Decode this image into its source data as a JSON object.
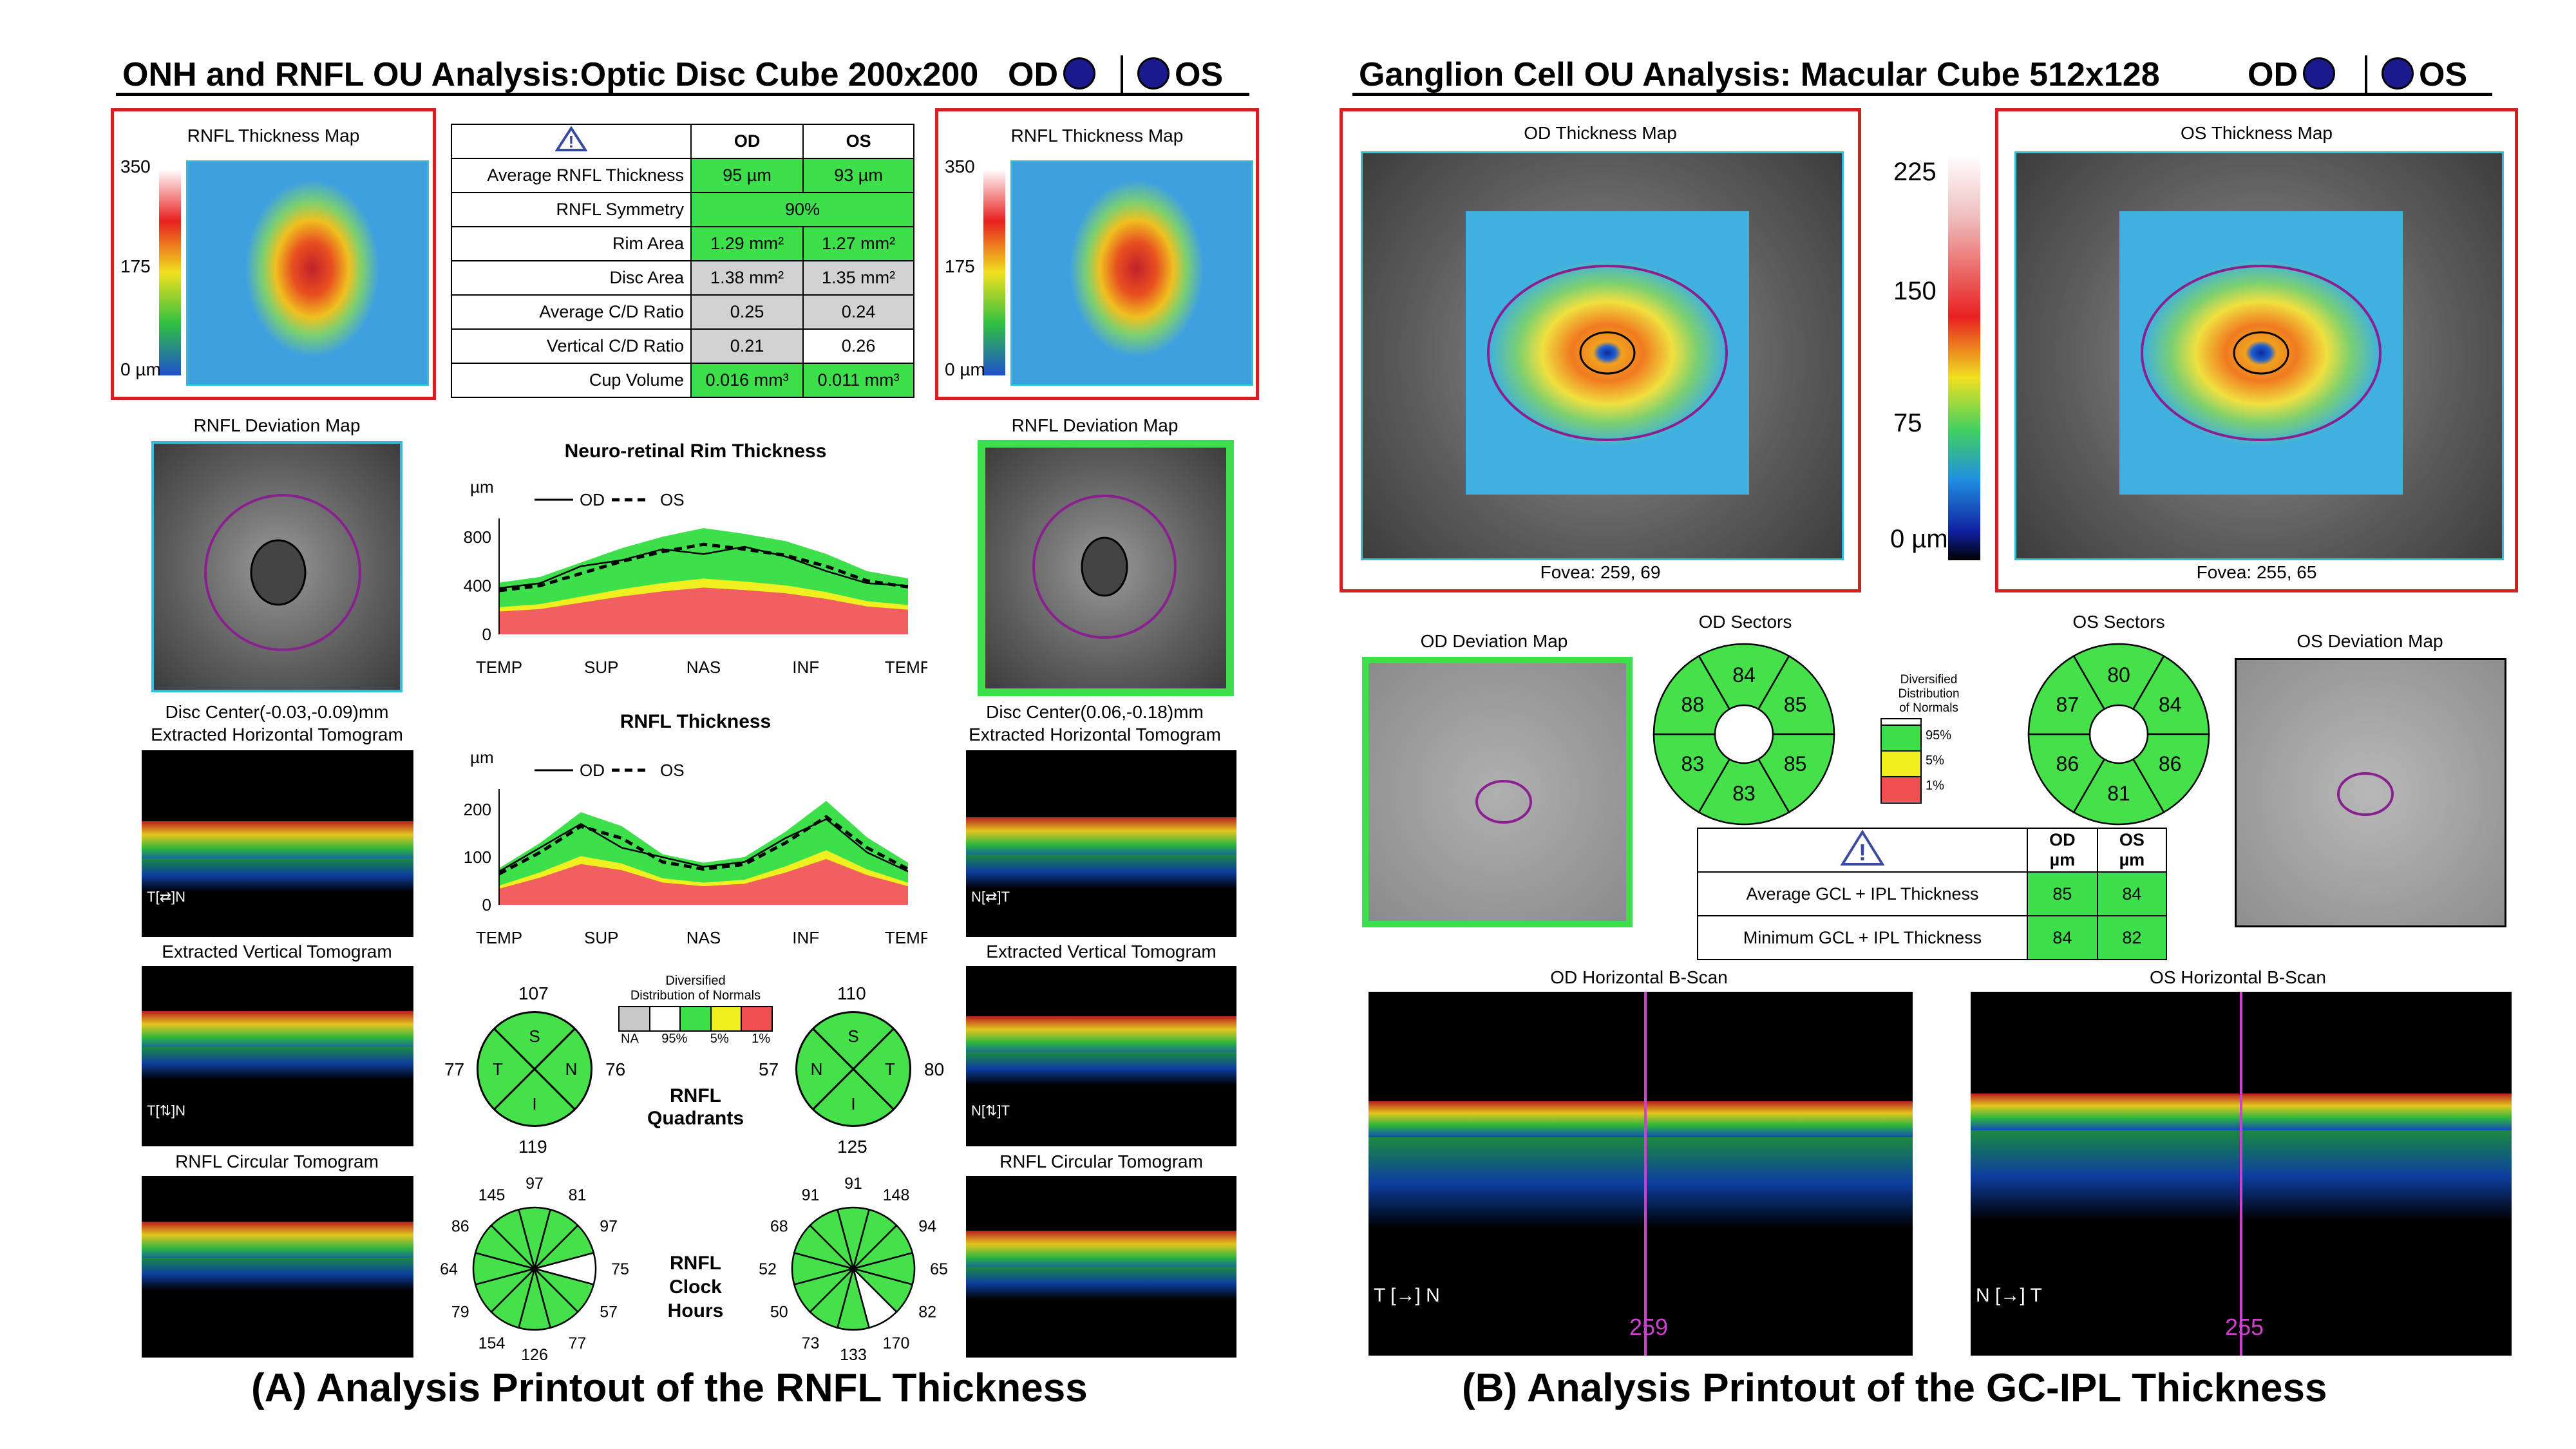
{
  "panelA": {
    "header": {
      "title": "ONH and RNFL OU Analysis:Optic Disc Cube 200x200",
      "od": "OD",
      "os": "OS"
    },
    "thickness_map_label": "RNFL Thickness Map",
    "scale_ticks": [
      "350",
      "175",
      "0 µm"
    ],
    "table": {
      "warn_icon": "warning-icon",
      "col_od": "OD",
      "col_os": "OS",
      "rows": [
        {
          "label": "Average RNFL Thickness",
          "od": "95 µm",
          "os": "93 µm"
        },
        {
          "label": "RNFL Symmetry",
          "both": "90%"
        },
        {
          "label": "Rim Area",
          "od": "1.29 mm²",
          "os": "1.27 mm²"
        },
        {
          "label": "Disc Area",
          "od": "1.38 mm²",
          "os": "1.35 mm²"
        },
        {
          "label": "Average C/D Ratio",
          "od": "0.25",
          "os": "0.24"
        },
        {
          "label": "Vertical C/D Ratio",
          "od": "0.21",
          "os": "0.26"
        },
        {
          "label": "Cup Volume",
          "od": "0.016 mm³",
          "os": "0.011 mm³"
        }
      ]
    },
    "deviation_map_label": "RNFL Deviation Map",
    "disc_center_od": "Disc Center(-0.03,-0.09)mm",
    "disc_center_os": "Disc Center(0.06,-0.18)mm",
    "h_tomo_label": "Extracted Horizontal Tomogram",
    "v_tomo_label": "Extracted Vertical Tomogram",
    "c_tomo_label": "RNFL Circular Tomogram",
    "tomo_od_dir": [
      "T",
      "N"
    ],
    "tomo_os_dir": [
      "N",
      "T"
    ],
    "rim_chart": {
      "title": "Neuro-retinal Rim Thickness",
      "unit": "µm",
      "legend_od": "OD",
      "legend_os": "OS"
    },
    "rnfl_chart": {
      "title": "RNFL Thickness",
      "unit": "µm",
      "legend_od": "OD",
      "legend_os": "OS"
    },
    "normals_legend": {
      "title1": "Diversified",
      "title2": "Distribution of Normals",
      "labels": [
        "NA",
        "95%",
        "5%",
        "1%"
      ]
    },
    "quadrants": {
      "label1": "RNFL",
      "label2": "Quadrants",
      "od": {
        "S": "107",
        "N": "76",
        "I": "119",
        "T": "77",
        "letters": [
          "S",
          "T",
          "N",
          "I"
        ]
      },
      "os": {
        "S": "110",
        "N": "57",
        "I": "125",
        "T": "80",
        "letters": [
          "S",
          "N",
          "T",
          "I"
        ]
      }
    },
    "clock": {
      "label1": "RNFL",
      "label2": "Clock",
      "label3": "Hours",
      "od": [
        "97",
        "81",
        "97",
        "75",
        "57",
        "77",
        "126",
        "154",
        "79",
        "64",
        "86",
        "145"
      ],
      "os": [
        "91",
        "148",
        "94",
        "65",
        "82",
        "170",
        "133",
        "73",
        "50",
        "52",
        "68",
        "91"
      ]
    },
    "caption": "(A) Analysis Printout of the RNFL Thickness"
  },
  "panelB": {
    "header": {
      "title": "Ganglion Cell OU Analysis: Macular Cube 512x128",
      "od": "OD",
      "os": "OS"
    },
    "od_map_label": "OD Thickness Map",
    "os_map_label": "OS Thickness Map",
    "fovea_od": "Fovea: 259, 69",
    "fovea_os": "Fovea: 255, 65",
    "scale_ticks": [
      "225",
      "150",
      "75",
      "0 µm"
    ],
    "od_dev_label": "OD Deviation Map",
    "os_dev_label": "OS Deviation Map",
    "od_sectors_label": "OD Sectors",
    "os_sectors_label": "OS Sectors",
    "od_sectors": [
      "84",
      "85",
      "85",
      "83",
      "83",
      "88"
    ],
    "os_sectors": [
      "80",
      "84",
      "86",
      "81",
      "86",
      "87"
    ],
    "normals_legend": {
      "title1": "Diversified",
      "title2": "Distribution",
      "title3": "of Normals",
      "labels": [
        "95%",
        "5%",
        "1%"
      ]
    },
    "table": {
      "col_od": "OD µm",
      "col_os": "OS µm",
      "rows": [
        {
          "label": "Average GCL + IPL Thickness",
          "od": "85",
          "os": "84"
        },
        {
          "label": "Minimum GCL + IPL Thickness",
          "od": "84",
          "os": "82"
        }
      ]
    },
    "od_bscan_label": "OD Horizontal B-Scan",
    "os_bscan_label": "OS Horizontal B-Scan",
    "od_bscan_pos": "259",
    "os_bscan_pos": "255",
    "od_bscan_dir": [
      "T",
      "N"
    ],
    "os_bscan_dir": [
      "N",
      "T"
    ],
    "caption": "(B) Analysis Printout of the GC-IPL Thickness"
  },
  "chart_data": [
    {
      "type": "line",
      "title": "Neuro-retinal Rim Thickness",
      "ylabel": "µm",
      "categories": [
        "TEMP",
        "SUP",
        "NAS",
        "INF",
        "TEMP"
      ],
      "yticks": [
        "0",
        "400",
        "800"
      ],
      "ylim": [
        0,
        900
      ],
      "x": [
        0,
        10,
        20,
        30,
        40,
        50,
        60,
        70,
        80,
        90,
        100
      ],
      "series": [
        {
          "name": "OD",
          "values": [
            380,
            420,
            560,
            610,
            700,
            660,
            720,
            640,
            520,
            420,
            400
          ]
        },
        {
          "name": "OS",
          "values": [
            360,
            400,
            500,
            600,
            680,
            740,
            700,
            650,
            560,
            440,
            390
          ]
        }
      ]
    },
    {
      "type": "line",
      "title": "RNFL Thickness",
      "ylabel": "µm",
      "categories": [
        "TEMP",
        "SUP",
        "NAS",
        "INF",
        "TEMP"
      ],
      "yticks": [
        "0",
        "100",
        "200"
      ],
      "ylim": [
        0,
        230
      ],
      "x": [
        0,
        10,
        20,
        30,
        40,
        50,
        60,
        70,
        80,
        90,
        100
      ],
      "series": [
        {
          "name": "OD",
          "values": [
            70,
            120,
            170,
            120,
            100,
            80,
            90,
            140,
            180,
            110,
            70
          ]
        },
        {
          "name": "OS",
          "values": [
            65,
            110,
            165,
            140,
            90,
            75,
            85,
            130,
            185,
            120,
            75
          ]
        }
      ]
    }
  ]
}
